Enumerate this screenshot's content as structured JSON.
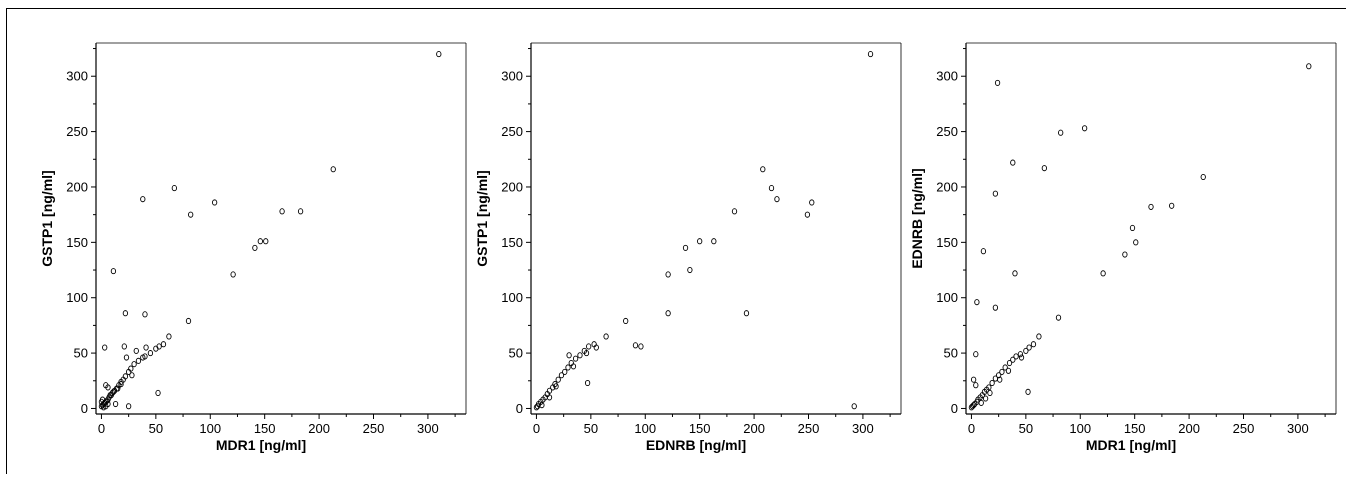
{
  "chart_data": [
    {
      "type": "scatter",
      "xlabel": "MDR1 [ng/ml]",
      "ylabel": "GSTP1 [ng/ml]",
      "xlim": [
        -5,
        335
      ],
      "ylim": [
        -5,
        330
      ],
      "xticks": [
        0,
        50,
        100,
        150,
        200,
        250,
        300
      ],
      "yticks": [
        0,
        50,
        100,
        150,
        200,
        250,
        300
      ],
      "points": [
        [
          310,
          320
        ],
        [
          213,
          216
        ],
        [
          183,
          178
        ],
        [
          166,
          178
        ],
        [
          151,
          151
        ],
        [
          146,
          151
        ],
        [
          141,
          145
        ],
        [
          121,
          121
        ],
        [
          104,
          186
        ],
        [
          82,
          175
        ],
        [
          67,
          199
        ],
        [
          38,
          189
        ],
        [
          80,
          79
        ],
        [
          11,
          124
        ],
        [
          22,
          86
        ],
        [
          40,
          85
        ],
        [
          62,
          65
        ],
        [
          57,
          58
        ],
        [
          53,
          56
        ],
        [
          50,
          54
        ],
        [
          45,
          50
        ],
        [
          40,
          47
        ],
        [
          38,
          46
        ],
        [
          34,
          43
        ],
        [
          30,
          40
        ],
        [
          27,
          36
        ],
        [
          25,
          33
        ],
        [
          22,
          29
        ],
        [
          20,
          26
        ],
        [
          18,
          24
        ],
        [
          16,
          21
        ],
        [
          14,
          18
        ],
        [
          12,
          16
        ],
        [
          10,
          14
        ],
        [
          8,
          12
        ],
        [
          7,
          10
        ],
        [
          6,
          8
        ],
        [
          5,
          7
        ],
        [
          4,
          6
        ],
        [
          3,
          5
        ],
        [
          2,
          4
        ],
        [
          1,
          3
        ],
        [
          0,
          2
        ],
        [
          0,
          6
        ],
        [
          1,
          8
        ],
        [
          2,
          1
        ],
        [
          4,
          2
        ],
        [
          6,
          4
        ],
        [
          4,
          21
        ],
        [
          6,
          19
        ],
        [
          3,
          55
        ],
        [
          21,
          56
        ],
        [
          41,
          55
        ],
        [
          32,
          52
        ],
        [
          23,
          46
        ],
        [
          52,
          14
        ],
        [
          25,
          2
        ],
        [
          13,
          4
        ],
        [
          9,
          12
        ],
        [
          11,
          15
        ],
        [
          15,
          18
        ],
        [
          18,
          22
        ],
        [
          28,
          30
        ]
      ]
    },
    {
      "type": "scatter",
      "xlabel": "EDNRB [ng/ml]",
      "ylabel": "GSTP1 [ng/ml]",
      "xlim": [
        -5,
        335
      ],
      "ylim": [
        -5,
        330
      ],
      "xticks": [
        0,
        50,
        100,
        150,
        200,
        250,
        300
      ],
      "yticks": [
        0,
        50,
        100,
        150,
        200,
        250,
        300
      ],
      "points": [
        [
          307,
          320
        ],
        [
          208,
          216
        ],
        [
          216,
          199
        ],
        [
          221,
          189
        ],
        [
          253,
          186
        ],
        [
          249,
          175
        ],
        [
          182,
          178
        ],
        [
          163,
          151
        ],
        [
          150,
          151
        ],
        [
          137,
          145
        ],
        [
          141,
          125
        ],
        [
          121,
          121
        ],
        [
          121,
          86
        ],
        [
          193,
          86
        ],
        [
          292,
          2
        ],
        [
          82,
          79
        ],
        [
          64,
          65
        ],
        [
          53,
          58
        ],
        [
          48,
          56
        ],
        [
          44,
          52
        ],
        [
          40,
          48
        ],
        [
          36,
          45
        ],
        [
          32,
          41
        ],
        [
          29,
          37
        ],
        [
          26,
          33
        ],
        [
          23,
          30
        ],
        [
          20,
          26
        ],
        [
          17,
          22
        ],
        [
          15,
          19
        ],
        [
          12,
          16
        ],
        [
          10,
          13
        ],
        [
          8,
          10
        ],
        [
          6,
          8
        ],
        [
          4,
          6
        ],
        [
          2,
          4
        ],
        [
          1,
          2
        ],
        [
          0,
          1
        ],
        [
          47,
          23
        ],
        [
          91,
          57
        ],
        [
          96,
          56
        ],
        [
          30,
          48
        ],
        [
          5,
          3
        ],
        [
          12,
          10
        ],
        [
          18,
          20
        ],
        [
          34,
          38
        ],
        [
          46,
          50
        ],
        [
          55,
          55
        ]
      ]
    },
    {
      "type": "scatter",
      "xlabel": "MDR1 [ng/ml]",
      "ylabel": "EDNRB [ng/ml]",
      "xlim": [
        -5,
        335
      ],
      "ylim": [
        -5,
        330
      ],
      "xticks": [
        0,
        50,
        100,
        150,
        200,
        250,
        300
      ],
      "yticks": [
        0,
        50,
        100,
        150,
        200,
        250,
        300
      ],
      "points": [
        [
          310,
          309
        ],
        [
          213,
          209
        ],
        [
          184,
          183
        ],
        [
          165,
          182
        ],
        [
          151,
          150
        ],
        [
          148,
          163
        ],
        [
          141,
          139
        ],
        [
          121,
          122
        ],
        [
          104,
          253
        ],
        [
          82,
          249
        ],
        [
          67,
          217
        ],
        [
          38,
          222
        ],
        [
          24,
          294
        ],
        [
          22,
          194
        ],
        [
          11,
          142
        ],
        [
          40,
          122
        ],
        [
          22,
          91
        ],
        [
          5,
          96
        ],
        [
          80,
          82
        ],
        [
          62,
          65
        ],
        [
          57,
          58
        ],
        [
          53,
          55
        ],
        [
          50,
          52
        ],
        [
          45,
          49
        ],
        [
          41,
          47
        ],
        [
          38,
          44
        ],
        [
          35,
          41
        ],
        [
          31,
          37
        ],
        [
          28,
          33
        ],
        [
          25,
          30
        ],
        [
          22,
          27
        ],
        [
          19,
          23
        ],
        [
          16,
          19
        ],
        [
          14,
          17
        ],
        [
          12,
          15
        ],
        [
          10,
          12
        ],
        [
          8,
          10
        ],
        [
          6,
          8
        ],
        [
          5,
          6
        ],
        [
          3,
          4
        ],
        [
          2,
          3
        ],
        [
          1,
          2
        ],
        [
          0,
          1
        ],
        [
          4,
          49
        ],
        [
          2,
          26
        ],
        [
          4,
          21
        ],
        [
          52,
          15
        ],
        [
          9,
          5
        ],
        [
          13,
          9
        ],
        [
          17,
          14
        ],
        [
          26,
          26
        ],
        [
          34,
          34
        ],
        [
          46,
          46
        ]
      ]
    }
  ]
}
